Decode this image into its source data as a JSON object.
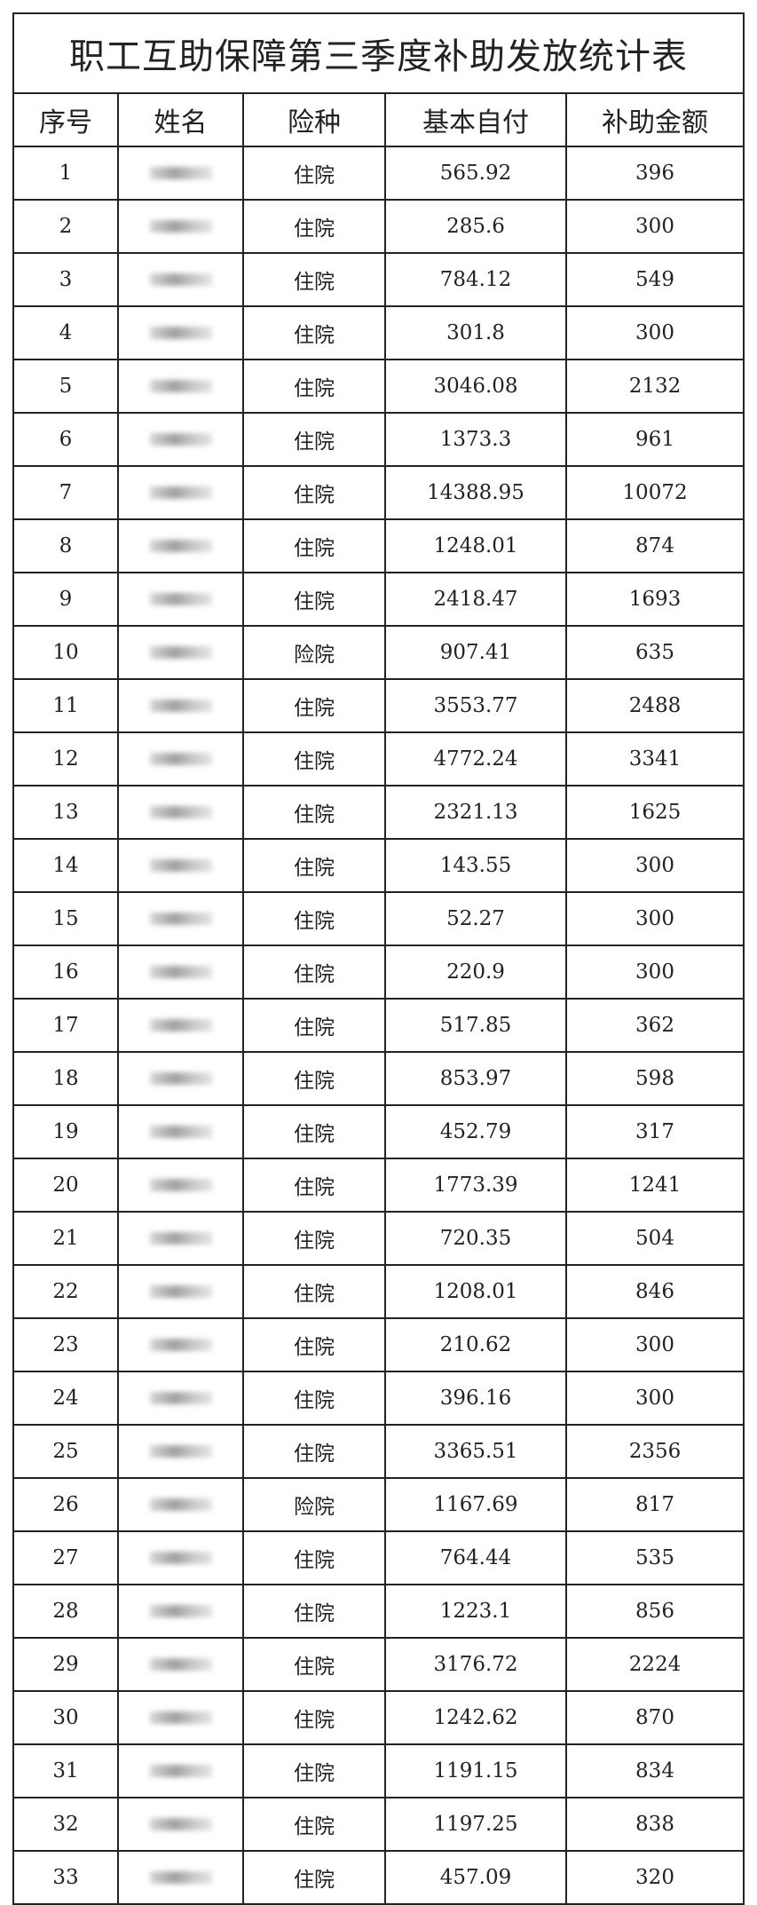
{
  "title": "职工互助保障第三季度补助发放统计表",
  "headers": [
    "序号",
    "姓名",
    "险种",
    "基本自付",
    "补助金额"
  ],
  "rows": [
    [
      "1",
      "",
      "住院",
      "565.92",
      "396"
    ],
    [
      "2",
      "",
      "住院",
      "285.6",
      "300"
    ],
    [
      "3",
      "",
      "住院",
      "784.12",
      "549"
    ],
    [
      "4",
      "",
      "住院",
      "301.8",
      "300"
    ],
    [
      "5",
      "",
      "住院",
      "3046.08",
      "2132"
    ],
    [
      "6",
      "",
      "住院",
      "1373.3",
      "961"
    ],
    [
      "7",
      "",
      "住院",
      "14388.95",
      "10072"
    ],
    [
      "8",
      "",
      "住院",
      "1248.01",
      "874"
    ],
    [
      "9",
      "",
      "住院",
      "2418.47",
      "1693"
    ],
    [
      "10",
      "",
      "险院",
      "907.41",
      "635"
    ],
    [
      "11",
      "",
      "住院",
      "3553.77",
      "2488"
    ],
    [
      "12",
      "",
      "住院",
      "4772.24",
      "3341"
    ],
    [
      "13",
      "",
      "住院",
      "2321.13",
      "1625"
    ],
    [
      "14",
      "",
      "住院",
      "143.55",
      "300"
    ],
    [
      "15",
      "",
      "住院",
      "52.27",
      "300"
    ],
    [
      "16",
      "",
      "住院",
      "220.9",
      "300"
    ],
    [
      "17",
      "",
      "住院",
      "517.85",
      "362"
    ],
    [
      "18",
      "",
      "住院",
      "853.97",
      "598"
    ],
    [
      "19",
      "",
      "住院",
      "452.79",
      "317"
    ],
    [
      "20",
      "",
      "住院",
      "1773.39",
      "1241"
    ],
    [
      "21",
      "",
      "住院",
      "720.35",
      "504"
    ],
    [
      "22",
      "",
      "住院",
      "1208.01",
      "846"
    ],
    [
      "23",
      "",
      "住院",
      "210.62",
      "300"
    ],
    [
      "24",
      "",
      "住院",
      "396.16",
      "300"
    ],
    [
      "25",
      "",
      "住院",
      "3365.51",
      "2356"
    ],
    [
      "26",
      "",
      "险院",
      "1167.69",
      "817"
    ],
    [
      "27",
      "",
      "住院",
      "764.44",
      "535"
    ],
    [
      "28",
      "",
      "住院",
      "1223.1",
      "856"
    ],
    [
      "29",
      "",
      "住院",
      "3176.72",
      "2224"
    ],
    [
      "30",
      "",
      "住院",
      "1242.62",
      "870"
    ],
    [
      "31",
      "",
      "住院",
      "1191.15",
      "834"
    ],
    [
      "32",
      "",
      "住院",
      "1197.25",
      "838"
    ],
    [
      "33",
      "",
      "住院",
      "457.09",
      "320"
    ]
  ]
}
